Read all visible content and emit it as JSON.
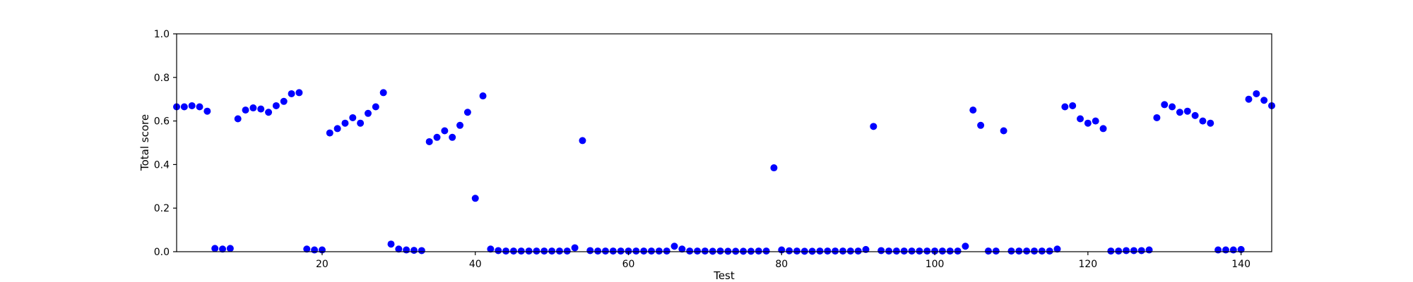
{
  "chart_data": {
    "type": "scatter",
    "title": "",
    "xlabel": "Test",
    "ylabel": "Total score",
    "xlim": [
      1,
      144
    ],
    "ylim": [
      0.0,
      1.0
    ],
    "xticks": [
      20,
      40,
      60,
      80,
      100,
      120,
      140
    ],
    "xtick_labels": [
      "20",
      "40",
      "60",
      "80",
      "100",
      "120",
      "140"
    ],
    "yticks": [
      0.0,
      0.2,
      0.4,
      0.6,
      0.8,
      1.0
    ],
    "ytick_labels": [
      "0.0",
      "0.2",
      "0.4",
      "0.6",
      "0.8",
      "1.0"
    ],
    "grid": false,
    "marker_color": "#0000ff",
    "series": [
      {
        "points": [
          [
            1,
            0.665
          ],
          [
            2,
            0.665
          ],
          [
            3,
            0.67
          ],
          [
            4,
            0.665
          ],
          [
            5,
            0.645
          ],
          [
            6,
            0.015
          ],
          [
            7,
            0.012
          ],
          [
            8,
            0.015
          ],
          [
            9,
            0.61
          ],
          [
            10,
            0.65
          ],
          [
            11,
            0.66
          ],
          [
            12,
            0.655
          ],
          [
            13,
            0.64
          ],
          [
            14,
            0.67
          ],
          [
            15,
            0.69
          ],
          [
            16,
            0.725
          ],
          [
            17,
            0.73
          ],
          [
            18,
            0.012
          ],
          [
            19,
            0.008
          ],
          [
            20,
            0.008
          ],
          [
            21,
            0.545
          ],
          [
            22,
            0.565
          ],
          [
            23,
            0.59
          ],
          [
            24,
            0.615
          ],
          [
            25,
            0.59
          ],
          [
            26,
            0.635
          ],
          [
            27,
            0.665
          ],
          [
            28,
            0.73
          ],
          [
            29,
            0.035
          ],
          [
            30,
            0.012
          ],
          [
            31,
            0.008
          ],
          [
            32,
            0.006
          ],
          [
            33,
            0.005
          ],
          [
            34,
            0.505
          ],
          [
            35,
            0.525
          ],
          [
            36,
            0.555
          ],
          [
            37,
            0.525
          ],
          [
            38,
            0.58
          ],
          [
            39,
            0.64
          ],
          [
            40,
            0.245
          ],
          [
            41,
            0.715
          ],
          [
            42,
            0.012
          ],
          [
            43,
            0.005
          ],
          [
            44,
            0.003
          ],
          [
            45,
            0.003
          ],
          [
            46,
            0.003
          ],
          [
            47,
            0.003
          ],
          [
            48,
            0.003
          ],
          [
            49,
            0.003
          ],
          [
            50,
            0.003
          ],
          [
            51,
            0.003
          ],
          [
            52,
            0.003
          ],
          [
            53,
            0.018
          ],
          [
            54,
            0.51
          ],
          [
            55,
            0.005
          ],
          [
            56,
            0.003
          ],
          [
            57,
            0.003
          ],
          [
            58,
            0.003
          ],
          [
            59,
            0.003
          ],
          [
            60,
            0.003
          ],
          [
            61,
            0.003
          ],
          [
            62,
            0.003
          ],
          [
            63,
            0.003
          ],
          [
            64,
            0.003
          ],
          [
            65,
            0.003
          ],
          [
            66,
            0.025
          ],
          [
            67,
            0.012
          ],
          [
            68,
            0.003
          ],
          [
            69,
            0.003
          ],
          [
            70,
            0.003
          ],
          [
            71,
            0.002
          ],
          [
            72,
            0.003
          ],
          [
            73,
            0.002
          ],
          [
            74,
            0.002
          ],
          [
            75,
            0.002
          ],
          [
            76,
            0.002
          ],
          [
            77,
            0.003
          ],
          [
            78,
            0.003
          ],
          [
            79,
            0.385
          ],
          [
            80,
            0.008
          ],
          [
            81,
            0.004
          ],
          [
            82,
            0.003
          ],
          [
            83,
            0.002
          ],
          [
            84,
            0.002
          ],
          [
            85,
            0.003
          ],
          [
            86,
            0.003
          ],
          [
            87,
            0.003
          ],
          [
            88,
            0.003
          ],
          [
            89,
            0.003
          ],
          [
            90,
            0.003
          ],
          [
            91,
            0.01
          ],
          [
            92,
            0.575
          ],
          [
            93,
            0.005
          ],
          [
            94,
            0.003
          ],
          [
            95,
            0.003
          ],
          [
            96,
            0.003
          ],
          [
            97,
            0.003
          ],
          [
            98,
            0.003
          ],
          [
            99,
            0.003
          ],
          [
            100,
            0.003
          ],
          [
            101,
            0.003
          ],
          [
            102,
            0.003
          ],
          [
            103,
            0.003
          ],
          [
            104,
            0.025
          ],
          [
            105,
            0.65
          ],
          [
            106,
            0.58
          ],
          [
            107,
            0.003
          ],
          [
            108,
            0.003
          ],
          [
            109,
            0.555
          ],
          [
            110,
            0.003
          ],
          [
            111,
            0.003
          ],
          [
            112,
            0.003
          ],
          [
            113,
            0.003
          ],
          [
            114,
            0.003
          ],
          [
            115,
            0.003
          ],
          [
            116,
            0.012
          ],
          [
            117,
            0.665
          ],
          [
            118,
            0.67
          ],
          [
            119,
            0.61
          ],
          [
            120,
            0.59
          ],
          [
            121,
            0.6
          ],
          [
            122,
            0.565
          ],
          [
            123,
            0.003
          ],
          [
            124,
            0.003
          ],
          [
            125,
            0.005
          ],
          [
            126,
            0.005
          ],
          [
            127,
            0.005
          ],
          [
            128,
            0.008
          ],
          [
            129,
            0.615
          ],
          [
            130,
            0.675
          ],
          [
            131,
            0.665
          ],
          [
            132,
            0.64
          ],
          [
            133,
            0.645
          ],
          [
            134,
            0.625
          ],
          [
            135,
            0.6
          ],
          [
            136,
            0.59
          ],
          [
            137,
            0.008
          ],
          [
            138,
            0.008
          ],
          [
            139,
            0.008
          ],
          [
            140,
            0.01
          ],
          [
            141,
            0.7
          ],
          [
            142,
            0.725
          ],
          [
            143,
            0.695
          ],
          [
            144,
            0.67
          ]
        ]
      }
    ]
  }
}
